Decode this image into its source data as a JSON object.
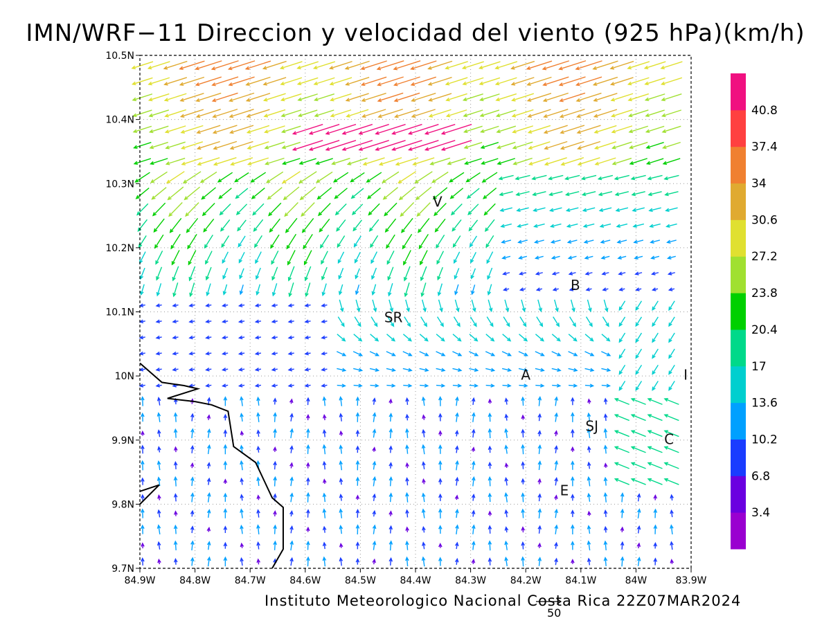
{
  "title": "IMN/WRF−11 Direccion y velocidad del viento (925 hPa)(km/h)",
  "footer": "Instituto Meteorologico Nacional Costa Rica 22Z07MAR2024",
  "reference_vector": {
    "speed": 50,
    "label": "50"
  },
  "axes": {
    "lon_range": [
      -84.9,
      -83.9
    ],
    "lat_range": [
      9.7,
      10.5
    ],
    "x_ticks": [
      "84.9W",
      "84.8W",
      "84.7W",
      "84.6W",
      "84.5W",
      "84.4W",
      "84.3W",
      "84.2W",
      "84.1W",
      "84W",
      "83.9W"
    ],
    "y_ticks": [
      "9.7N",
      "9.8N",
      "9.9N",
      "10N",
      "10.1N",
      "10.2N",
      "10.3N",
      "10.4N",
      "10.5N"
    ],
    "grid": "dotted"
  },
  "colorbar": {
    "labels": [
      "3.4",
      "6.8",
      "10.2",
      "13.6",
      "17",
      "20.4",
      "23.8",
      "27.2",
      "30.6",
      "34",
      "37.4",
      "40.8"
    ],
    "colors": [
      "#9a00d0",
      "#6a00e0",
      "#1a3cff",
      "#00a0ff",
      "#00cfcf",
      "#00d98a",
      "#00d000",
      "#a0e030",
      "#e0e030",
      "#e0aa30",
      "#f08030",
      "#ff4040",
      "#f01080"
    ]
  },
  "city_labels": [
    {
      "text": "V",
      "lon": -84.36,
      "lat": 10.27
    },
    {
      "text": "B",
      "lon": -84.11,
      "lat": 10.14
    },
    {
      "text": "SR",
      "lon": -84.44,
      "lat": 10.09
    },
    {
      "text": "A",
      "lon": -84.2,
      "lat": 10.0
    },
    {
      "text": "SJ",
      "lon": -84.08,
      "lat": 9.92
    },
    {
      "text": "C",
      "lon": -83.94,
      "lat": 9.9
    },
    {
      "text": "E",
      "lon": -84.13,
      "lat": 9.82
    },
    {
      "text": "I",
      "lon": -83.91,
      "lat": 10.0
    }
  ],
  "coastline": [
    [
      -84.9,
      10.02
    ],
    [
      -84.86,
      9.99
    ],
    [
      -84.82,
      9.985
    ],
    [
      -84.795,
      9.98
    ],
    [
      -84.85,
      9.965
    ],
    [
      -84.8,
      9.96
    ],
    [
      -84.77,
      9.955
    ],
    [
      -84.74,
      9.945
    ],
    [
      -84.73,
      9.89
    ],
    [
      -84.69,
      9.865
    ],
    [
      -84.66,
      9.81
    ],
    [
      -84.64,
      9.795
    ],
    [
      -84.64,
      9.73
    ],
    [
      -84.66,
      9.7
    ]
  ],
  "peninsula": [
    [
      -84.9,
      9.8
    ],
    [
      -84.865,
      9.83
    ],
    [
      -84.9,
      9.82
    ]
  ]
}
